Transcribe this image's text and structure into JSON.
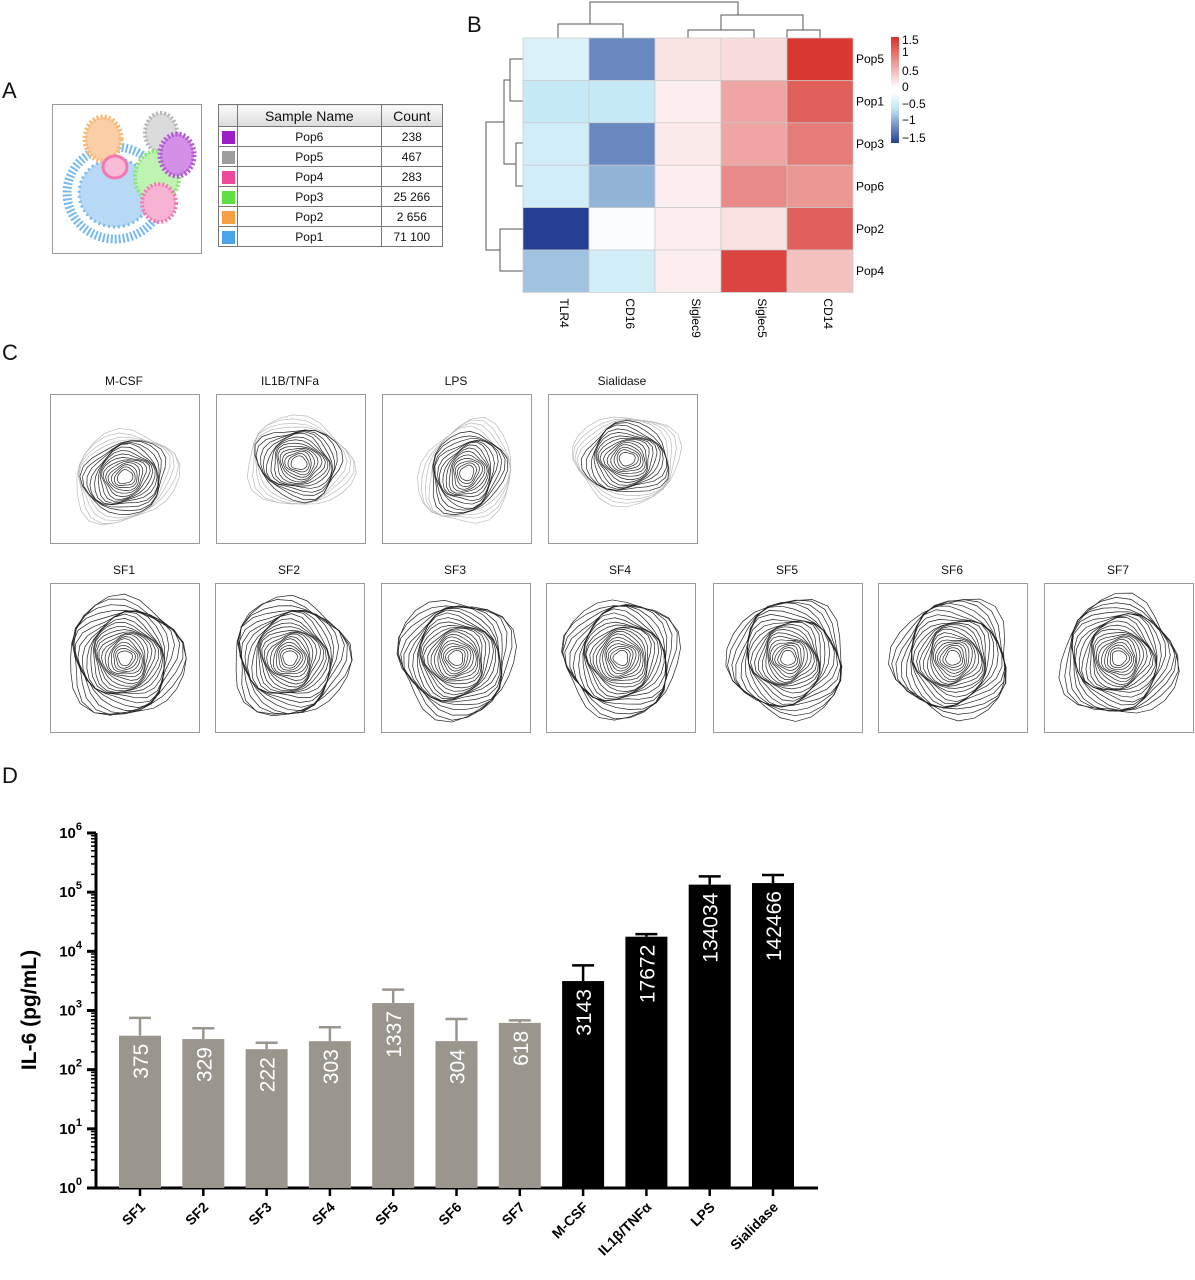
{
  "panel_letters": {
    "a": "A",
    "b": "B",
    "c": "C",
    "d": "D"
  },
  "panel_a": {
    "headers": {
      "name": "Sample Name",
      "count": "Count"
    },
    "rows": [
      {
        "name": "Pop6",
        "count": "238",
        "color": "#9b1fc7"
      },
      {
        "name": "Pop5",
        "count": "467",
        "color": "#9e9e9e"
      },
      {
        "name": "Pop4",
        "count": "283",
        "color": "#ef4a9a"
      },
      {
        "name": "Pop3",
        "count": "25 266",
        "color": "#5ee043"
      },
      {
        "name": "Pop2",
        "count": "2 656",
        "color": "#f7a043"
      },
      {
        "name": "Pop1",
        "count": "71 100",
        "color": "#4aa3e8"
      }
    ]
  },
  "panel_b": {
    "type": "heatmap",
    "columns": [
      "TLR4",
      "CD16",
      "Siglec9",
      "Siglec5",
      "CD14"
    ],
    "rows": [
      "Pop5",
      "Pop1",
      "Pop3",
      "Pop6",
      "Pop2",
      "Pop4"
    ],
    "values": [
      [
        -0.35,
        -1.25,
        0.2,
        0.25,
        1.45
      ],
      [
        -0.55,
        -0.55,
        0.12,
        0.65,
        1.15
      ],
      [
        -0.45,
        -1.25,
        0.15,
        0.65,
        0.95
      ],
      [
        -0.45,
        -0.95,
        0.12,
        0.85,
        0.75
      ],
      [
        -1.75,
        -0.05,
        0.12,
        0.22,
        1.15
      ],
      [
        -0.85,
        -0.45,
        0.12,
        1.35,
        0.45
      ]
    ],
    "colorbar_ticks": [
      "1.5",
      "1",
      "0.5",
      "0",
      "−0.5",
      "−1",
      "−1.5"
    ],
    "colorbar_range": [
      -1.75,
      1.6
    ],
    "colors": {
      "low": "#243f94",
      "mid": "#ffffff",
      "high": "#d7302b"
    }
  },
  "panel_c": {
    "top_row": [
      "M-CSF",
      "IL1B/TNFa",
      "LPS",
      "Sialidase"
    ],
    "bottom_row": [
      "SF1",
      "SF2",
      "SF3",
      "SF4",
      "SF5",
      "SF6",
      "SF7"
    ]
  },
  "chart_data": {
    "type": "bar",
    "scale": "log10",
    "ylabel": "IL-6 (pg/mL)",
    "ylim": [
      1,
      1000000
    ],
    "y_tick_exponents": [
      "0",
      "1",
      "2",
      "3",
      "4",
      "5",
      "6"
    ],
    "y_tick_base": "10",
    "categories": [
      "SF1",
      "SF2",
      "SF3",
      "SF4",
      "SF5",
      "SF6",
      "SF7",
      "M-CSF",
      "IL1β/TNFα",
      "LPS",
      "Sialidase"
    ],
    "values": [
      375,
      329,
      222,
      303,
      1337,
      304,
      618,
      3143,
      17672,
      134034,
      142466
    ],
    "value_labels": [
      "375",
      "329",
      "222",
      "303",
      "1337",
      "304",
      "618",
      "3143",
      "17672",
      "134034",
      "142466"
    ],
    "error_upper": [
      750,
      500,
      285,
      520,
      2250,
      720,
      680,
      5800,
      19500,
      185000,
      195000
    ],
    "bar_colors": [
      "#9a958d",
      "#9a958d",
      "#9a958d",
      "#9a958d",
      "#9a958d",
      "#9a958d",
      "#9a958d",
      "#000000",
      "#000000",
      "#000000",
      "#000000"
    ],
    "errorbar_colors": [
      "#9a958d",
      "#9a958d",
      "#9a958d",
      "#9a958d",
      "#9a958d",
      "#9a958d",
      "#9a958d",
      "#000000",
      "#000000",
      "#000000",
      "#000000"
    ]
  }
}
